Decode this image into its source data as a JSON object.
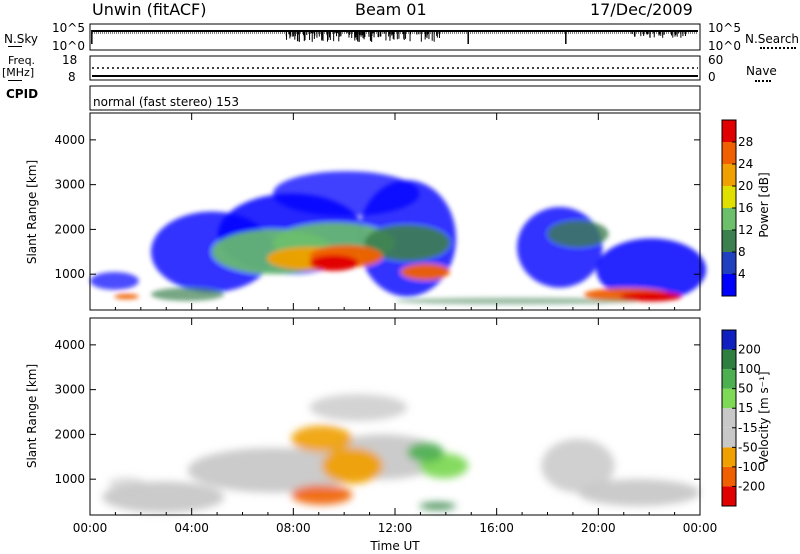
{
  "header": {
    "site": "Unwin (fitACF)",
    "beam": "Beam 01",
    "date": "17/Dec/2009"
  },
  "panels": {
    "nsky_label": "N.Sky",
    "nsearch_label": "N.Search",
    "nsky_ticks": [
      "10^5",
      "10^0"
    ],
    "nsearch_ticks": [
      "10^5",
      "10^0"
    ],
    "freq_label": "Freq.",
    "freq_unit": "[MHz]",
    "freq_ticks": [
      "18",
      "8"
    ],
    "nave_label": "Nave",
    "nave_ticks": [
      "60",
      "0"
    ],
    "cpid_label": "CPID",
    "cpid_text": "normal (fast stereo) 153"
  },
  "colors": {
    "power_scale": [
      "#0000ff",
      "#2040c0",
      "#3d8050",
      "#6cc06c",
      "#e0e000",
      "#f0a000",
      "#f06000",
      "#e00000"
    ],
    "velocity_scale": [
      "#1020c0",
      "#2f7f40",
      "#4caf50",
      "#7ed957",
      "#c8c8c8",
      "#c8c8c8",
      "#f0a000",
      "#f06000",
      "#e00000"
    ]
  },
  "chart_data": [
    {
      "type": "heatmap",
      "title": "Power",
      "ylabel": "Slant Range [km]",
      "xlabel": "Time UT",
      "x_ticks": [
        "00:00",
        "04:00",
        "08:00",
        "12:00",
        "16:00",
        "20:00",
        "00:00"
      ],
      "y_ticks": [
        1000,
        2000,
        3000,
        4000
      ],
      "ylim": [
        200,
        4600
      ],
      "colorbar_label": "Power [dB]",
      "colorbar_ticks": [
        4,
        8,
        12,
        16,
        20,
        24,
        28
      ]
    },
    {
      "type": "heatmap",
      "title": "Velocity",
      "ylabel": "Slant Range [km]",
      "xlabel": "Time UT",
      "x_ticks": [
        "00:00",
        "04:00",
        "08:00",
        "12:00",
        "16:00",
        "20:00",
        "00:00"
      ],
      "y_ticks": [
        1000,
        2000,
        3000,
        4000
      ],
      "ylim": [
        200,
        4600
      ],
      "colorbar_label": "Velocity [m s⁻¹]",
      "colorbar_ticks": [
        200,
        100,
        50,
        15,
        -15,
        -50,
        -100,
        -200
      ]
    }
  ]
}
